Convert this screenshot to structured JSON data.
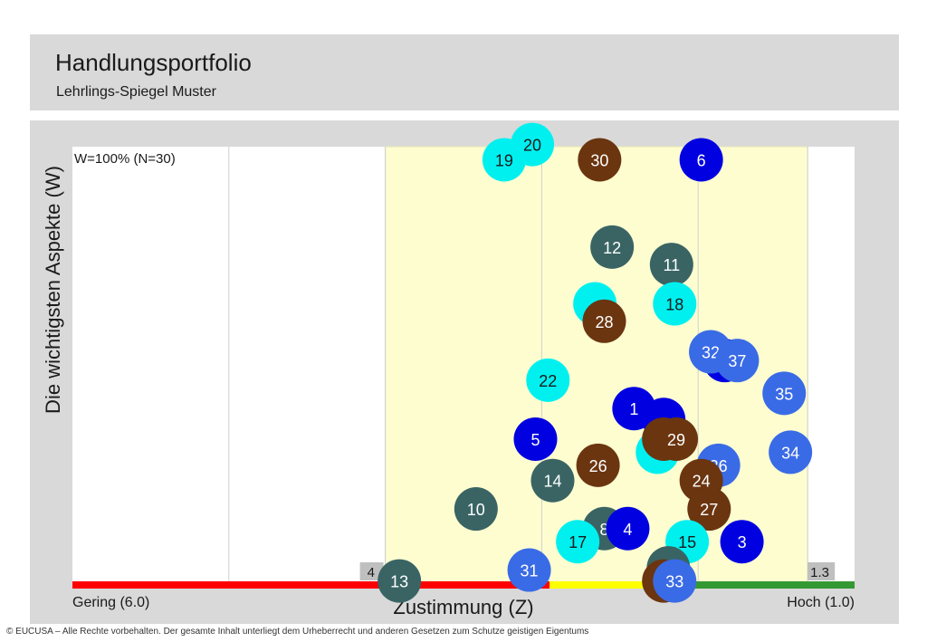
{
  "header": {
    "title": "Handlungsportfolio",
    "subtitle": "Lehrlings-Spiegel Muster"
  },
  "footer": "© EUCUSA – Alle Rechte vorbehalten. Der gesamte Inhalt unterliegt dem Urheberrecht und anderen Gesetzen zum Schutze geistigen Eigentums",
  "colors": {
    "blue": "#0000e0",
    "mid_blue": "#3a6be6",
    "cyan": "#00f0f0",
    "teal": "#3a6464",
    "brown": "#6b3510",
    "yellow_band": "#fdfdd0",
    "bar_red": "#ff0000",
    "bar_yellow": "#ffff00",
    "bar_green": "#339933"
  },
  "chart_data": {
    "type": "scatter",
    "title": "",
    "xlabel": "Zustimmung (Z)",
    "ylabel": "Die wichtigsten Aspekte (W)",
    "xlim": [
      6.0,
      1.0
    ],
    "ylim": [
      0,
      100
    ],
    "x_min_label": "Gering (6.0)",
    "x_max_label": "Hoch (1.0)",
    "top_label": "W=100% (N=30)",
    "highlight_band": [
      4.0,
      1.3
    ],
    "band_edge_labels": [
      "4",
      "1.3"
    ],
    "bar_segments": [
      {
        "from": 6.0,
        "to": 2.95,
        "color": "#ff0000"
      },
      {
        "from": 2.95,
        "to": 2.1,
        "color": "#ffff00"
      },
      {
        "from": 2.1,
        "to": 1.0,
        "color": "#339933"
      }
    ],
    "points": [
      {
        "id": "20",
        "x": 3.06,
        "y": 100.5,
        "group": "cyan"
      },
      {
        "id": "19",
        "x": 3.24,
        "y": 97.0,
        "group": "cyan"
      },
      {
        "id": "30",
        "x": 2.63,
        "y": 97.0,
        "group": "brown"
      },
      {
        "id": "6",
        "x": 1.98,
        "y": 97.0,
        "group": "blue"
      },
      {
        "id": "12",
        "x": 2.55,
        "y": 77.0,
        "group": "teal"
      },
      {
        "id": "11",
        "x": 2.17,
        "y": 73.0,
        "group": "teal"
      },
      {
        "id": "",
        "x": 2.66,
        "y": 64.0,
        "group": "cyan"
      },
      {
        "id": "18",
        "x": 2.15,
        "y": 64.0,
        "group": "cyan"
      },
      {
        "id": "28",
        "x": 2.6,
        "y": 60.0,
        "group": "brown"
      },
      {
        "id": "",
        "x": 1.83,
        "y": 51.0,
        "group": "blue"
      },
      {
        "id": "32",
        "x": 1.92,
        "y": 53.0,
        "group": "mid_blue"
      },
      {
        "id": "37",
        "x": 1.75,
        "y": 51.0,
        "group": "mid_blue"
      },
      {
        "id": "22",
        "x": 2.96,
        "y": 46.5,
        "group": "cyan"
      },
      {
        "id": "35",
        "x": 1.45,
        "y": 43.5,
        "group": "mid_blue"
      },
      {
        "id": "1",
        "x": 2.41,
        "y": 40.0,
        "group": "blue"
      },
      {
        "id": "",
        "x": 2.22,
        "y": 37.5,
        "group": "blue"
      },
      {
        "id": "5",
        "x": 3.04,
        "y": 33.0,
        "group": "blue"
      },
      {
        "id": "",
        "x": 2.26,
        "y": 30.0,
        "group": "cyan"
      },
      {
        "id": "2",
        "x": 2.22,
        "y": 33.0,
        "group": "brown"
      },
      {
        "id": "29",
        "x": 2.14,
        "y": 33.0,
        "group": "brown"
      },
      {
        "id": "34",
        "x": 1.41,
        "y": 30.0,
        "group": "mid_blue"
      },
      {
        "id": "26",
        "x": 2.64,
        "y": 27.0,
        "group": "brown"
      },
      {
        "id": "36",
        "x": 1.87,
        "y": 27.0,
        "group": "mid_blue"
      },
      {
        "id": "14",
        "x": 2.93,
        "y": 23.5,
        "group": "teal"
      },
      {
        "id": "24",
        "x": 1.98,
        "y": 23.5,
        "group": "brown"
      },
      {
        "id": "10",
        "x": 3.42,
        "y": 17.0,
        "group": "teal"
      },
      {
        "id": "27",
        "x": 1.93,
        "y": 17.0,
        "group": "brown"
      },
      {
        "id": "8",
        "x": 2.6,
        "y": 12.5,
        "group": "teal"
      },
      {
        "id": "4",
        "x": 2.45,
        "y": 12.5,
        "group": "blue"
      },
      {
        "id": "17",
        "x": 2.77,
        "y": 9.5,
        "group": "cyan"
      },
      {
        "id": "15",
        "x": 2.07,
        "y": 9.5,
        "group": "cyan"
      },
      {
        "id": "3",
        "x": 1.72,
        "y": 9.5,
        "group": "blue"
      },
      {
        "id": "",
        "x": 2.19,
        "y": 3.5,
        "group": "teal"
      },
      {
        "id": "31",
        "x": 3.08,
        "y": 3.0,
        "group": "mid_blue"
      },
      {
        "id": "13",
        "x": 3.91,
        "y": 0.5,
        "group": "teal"
      },
      {
        "id": "2",
        "x": 2.22,
        "y": 0.5,
        "group": "brown"
      },
      {
        "id": "33",
        "x": 2.15,
        "y": 0.5,
        "group": "mid_blue"
      }
    ]
  }
}
